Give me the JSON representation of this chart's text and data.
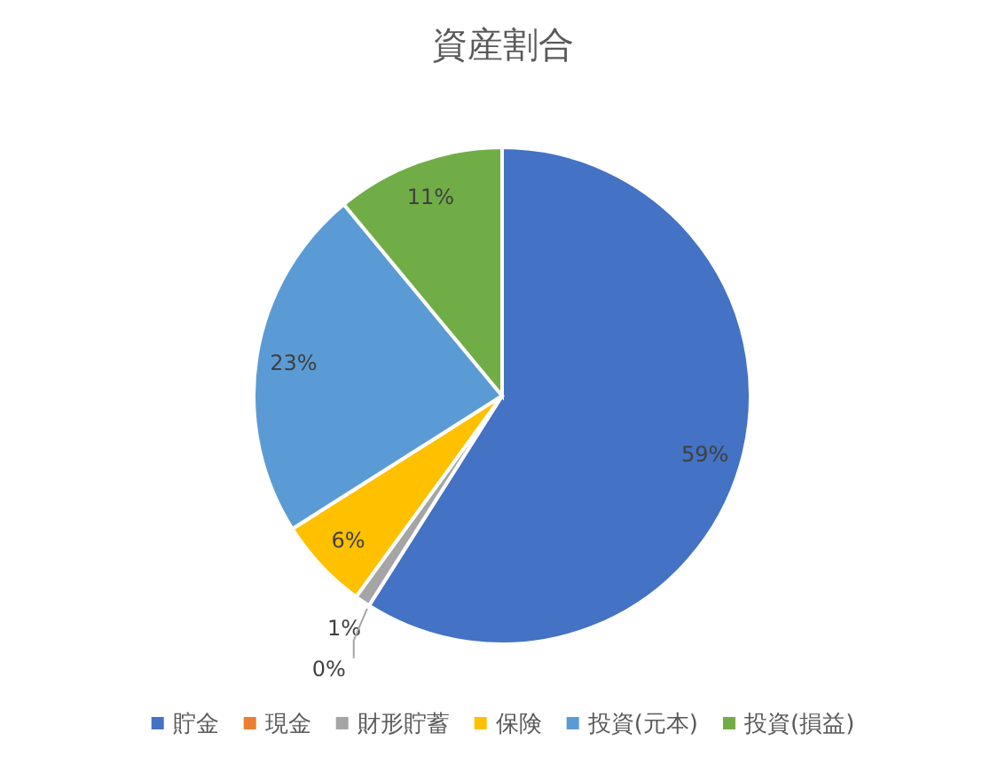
{
  "chart_data": {
    "type": "pie",
    "title": "資産割合",
    "categories": [
      "貯金",
      "現金",
      "財形貯蓄",
      "保険",
      "投資(元本)",
      "投資(損益)"
    ],
    "values": [
      59,
      0,
      1,
      6,
      23,
      11
    ],
    "colors": [
      "#4472c4",
      "#ed7d31",
      "#a5a5a5",
      "#ffc000",
      "#5b9bd5",
      "#70ad47"
    ],
    "value_labels": [
      "59%",
      "0%",
      "1%",
      "6%",
      "23%",
      "11%"
    ],
    "legend": "bottom"
  }
}
